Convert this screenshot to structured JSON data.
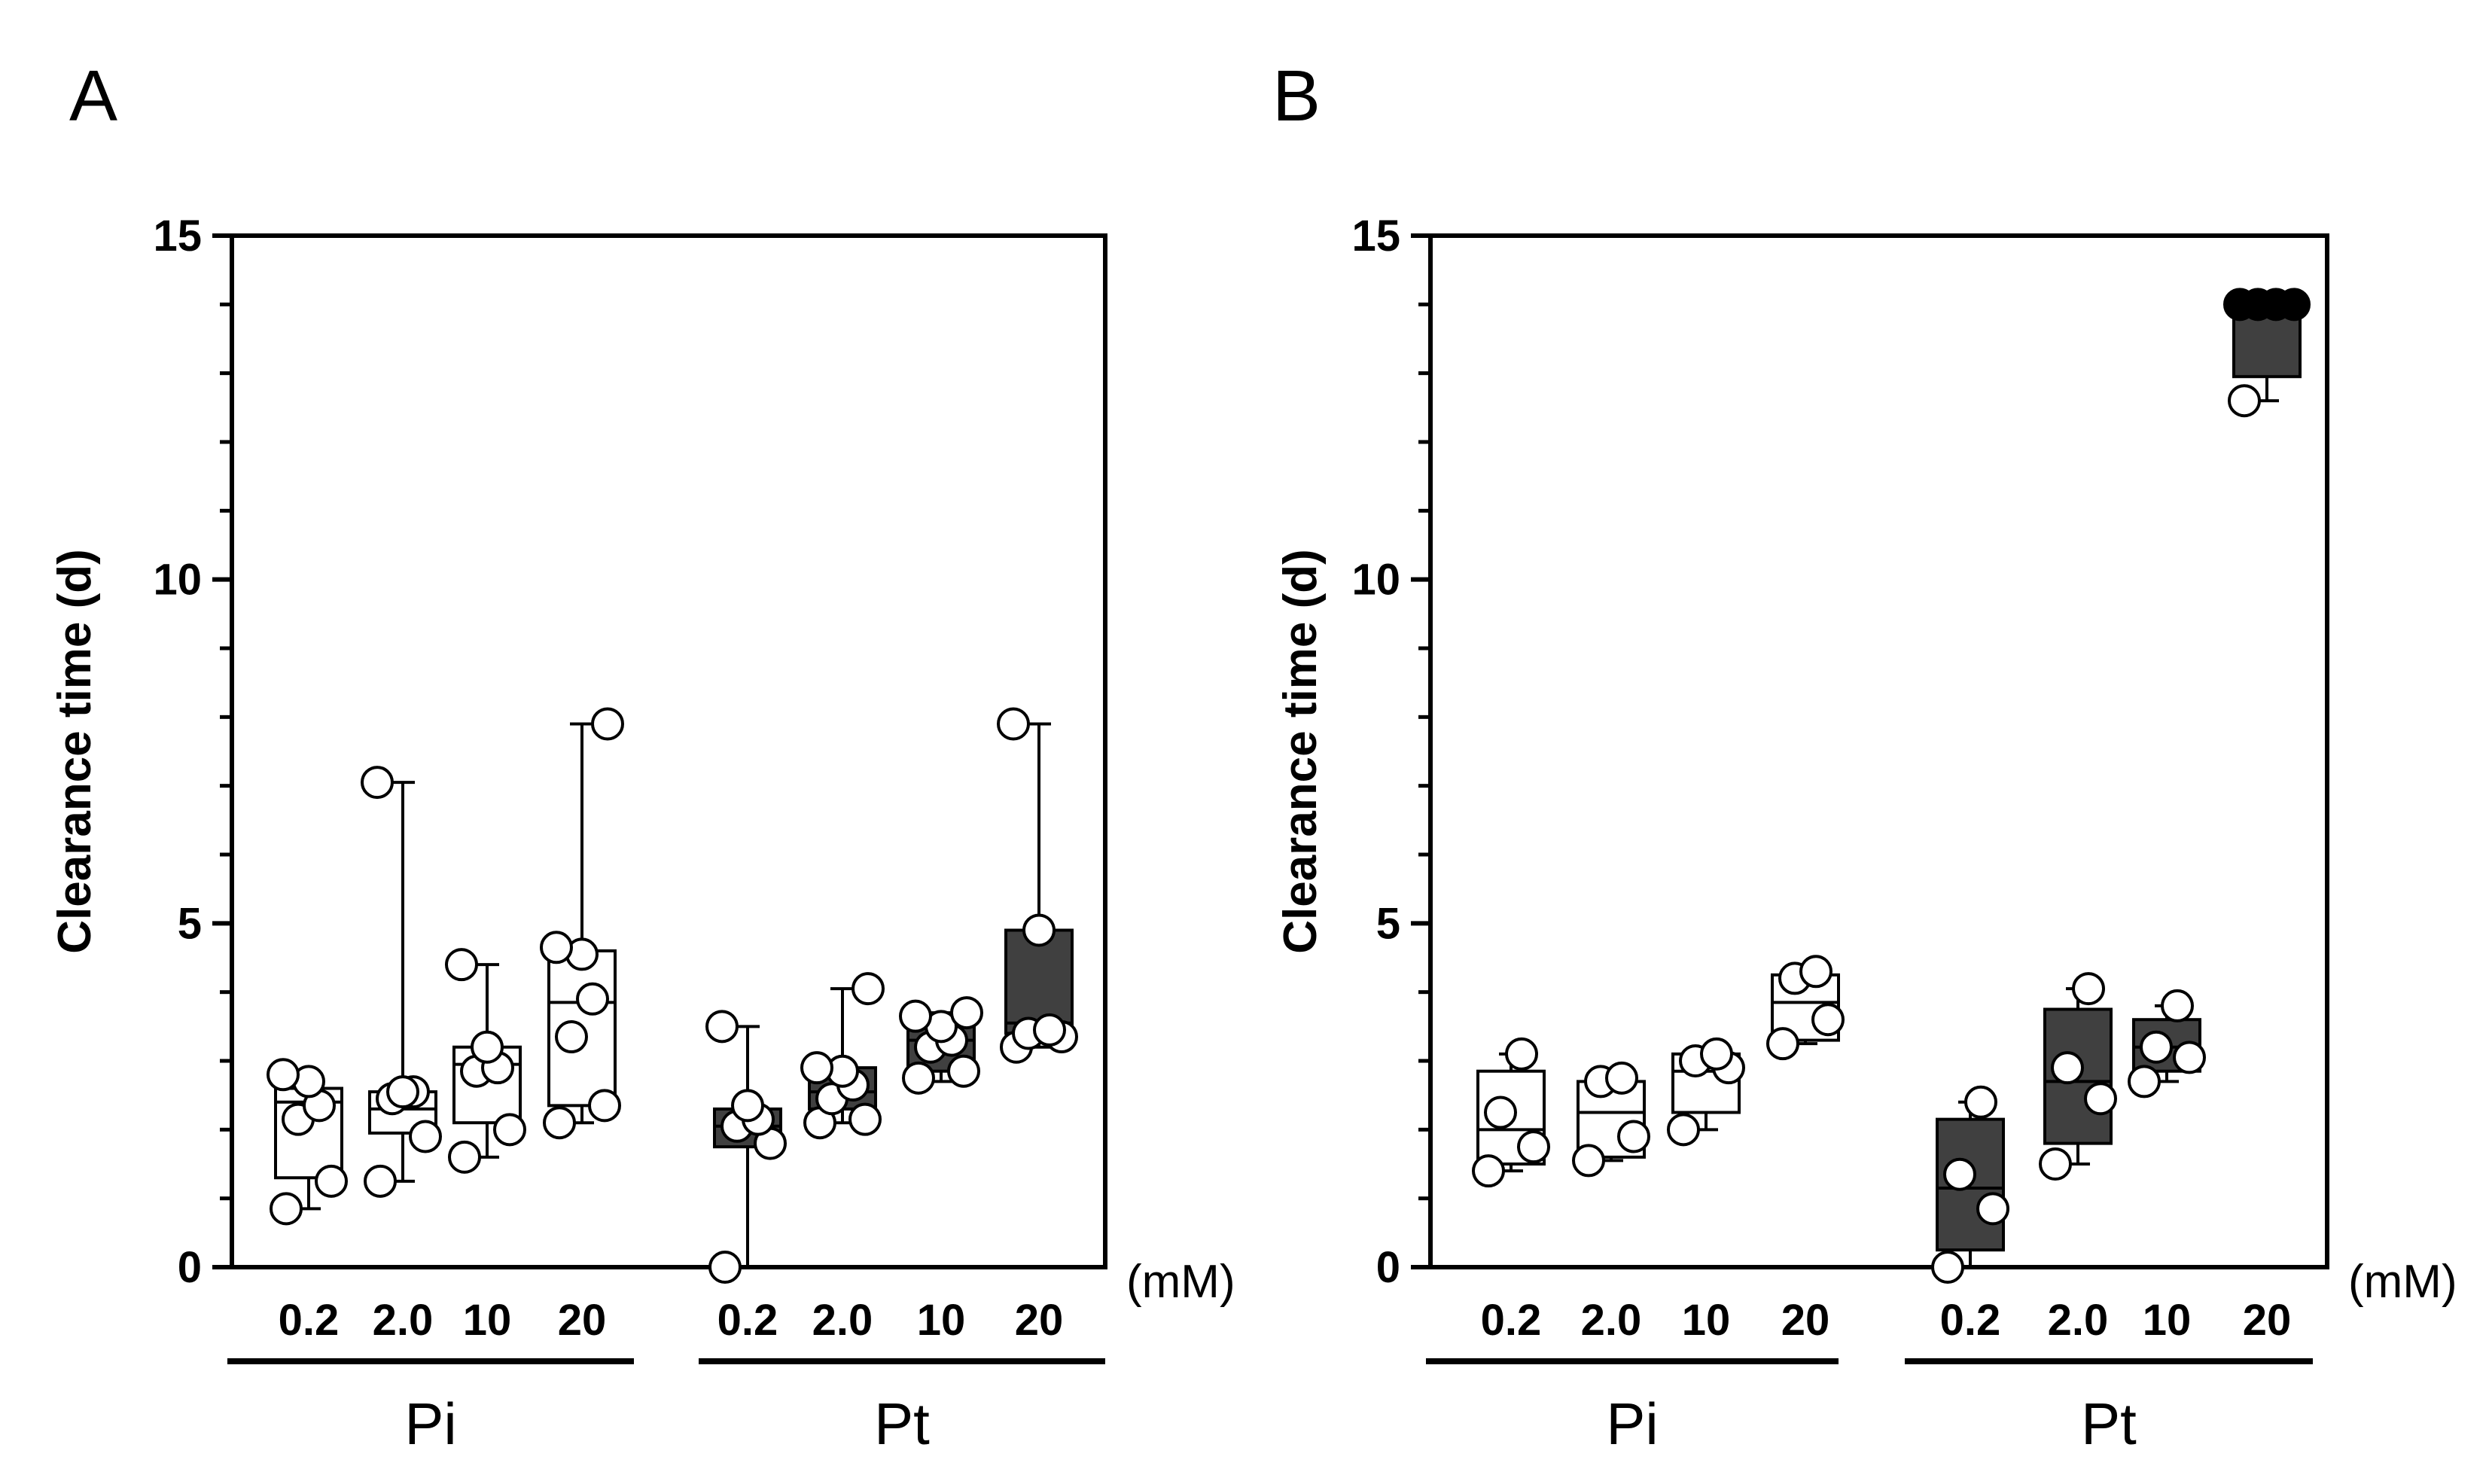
{
  "figure": {
    "ink_color": "#000000",
    "pi_box_color": "#ffffff",
    "pt_box_color": "#404040",
    "filled_point_color": "#000000",
    "open_point_color": "#ffffff"
  },
  "chart_data": [
    {
      "panel": "A",
      "type": "box",
      "ylabel": "Clearance time (d)",
      "ylim": [
        0,
        15
      ],
      "yticks": [
        0,
        5,
        10,
        15
      ],
      "ytick_labels": [
        "0",
        "5",
        "10",
        "15"
      ],
      "unit_label": "(mM)",
      "groups": [
        {
          "label": "Pi",
          "categories": [
            {
              "label": "0.2",
              "fill": "white",
              "whisker_min": 0.85,
              "q1": 1.3,
              "median": 2.4,
              "q3": 2.6,
              "whisker_max": 2.8,
              "points": [
                0.85,
                1.25,
                2.15,
                2.35,
                2.7,
                2.8
              ]
            },
            {
              "label": "2.0",
              "fill": "white",
              "whisker_min": 1.25,
              "q1": 1.95,
              "median": 2.3,
              "q3": 2.55,
              "whisker_max": 7.05,
              "points": [
                1.25,
                1.9,
                2.45,
                2.55,
                2.55,
                7.05
              ]
            },
            {
              "label": "10",
              "fill": "white",
              "whisker_min": 1.6,
              "q1": 2.1,
              "median": 2.95,
              "q3": 3.2,
              "whisker_max": 4.4,
              "points": [
                1.6,
                2.0,
                2.85,
                2.9,
                3.2,
                4.4
              ]
            },
            {
              "label": "20",
              "fill": "white",
              "whisker_min": 2.1,
              "q1": 2.35,
              "median": 3.85,
              "q3": 4.6,
              "whisker_max": 7.9,
              "points": [
                2.1,
                2.35,
                3.35,
                3.9,
                4.55,
                4.65,
                7.9
              ]
            }
          ]
        },
        {
          "label": "Pt",
          "categories": [
            {
              "label": "0.2",
              "fill": "dark",
              "whisker_min": 0.0,
              "q1": 1.75,
              "median": 2.05,
              "q3": 2.3,
              "whisker_max": 3.5,
              "points": [
                0.0,
                1.8,
                2.05,
                2.15,
                2.35,
                3.5
              ]
            },
            {
              "label": "2.0",
              "fill": "dark",
              "whisker_min": 2.1,
              "q1": 2.3,
              "median": 2.55,
              "q3": 2.9,
              "whisker_max": 4.05,
              "points": [
                2.1,
                2.15,
                2.45,
                2.65,
                2.85,
                2.9,
                4.05
              ]
            },
            {
              "label": "10",
              "fill": "dark",
              "whisker_min": 2.7,
              "q1": 2.85,
              "median": 3.3,
              "q3": 3.65,
              "whisker_max": 3.7,
              "points": [
                2.75,
                2.85,
                3.2,
                3.3,
                3.5,
                3.65,
                3.7
              ]
            },
            {
              "label": "20",
              "fill": "dark",
              "whisker_min": 3.2,
              "q1": 3.4,
              "median": 3.55,
              "q3": 4.9,
              "whisker_max": 7.9,
              "points": [
                3.2,
                3.35,
                3.4,
                3.45,
                4.9,
                7.9
              ]
            }
          ]
        }
      ]
    },
    {
      "panel": "B",
      "type": "box",
      "ylabel": "Clearance time (d)",
      "ylim": [
        0,
        15
      ],
      "yticks": [
        0,
        5,
        10,
        15
      ],
      "ytick_labels": [
        "0",
        "5",
        "10",
        "15"
      ],
      "unit_label": "(mM)",
      "groups": [
        {
          "label": "Pi",
          "categories": [
            {
              "label": "0.2",
              "fill": "white",
              "whisker_min": 1.4,
              "q1": 1.5,
              "median": 2.0,
              "q3": 2.85,
              "whisker_max": 3.1,
              "points": [
                1.4,
                1.75,
                2.25,
                3.1
              ]
            },
            {
              "label": "2.0",
              "fill": "white",
              "whisker_min": 1.55,
              "q1": 1.6,
              "median": 2.25,
              "q3": 2.7,
              "whisker_max": 2.75,
              "points": [
                1.55,
                1.9,
                2.7,
                2.75
              ]
            },
            {
              "label": "10",
              "fill": "white",
              "whisker_min": 2.0,
              "q1": 2.25,
              "median": 2.85,
              "q3": 3.1,
              "whisker_max": 3.1,
              "points": [
                2.0,
                2.9,
                3.0,
                3.1
              ]
            },
            {
              "label": "20",
              "fill": "white",
              "whisker_min": 3.25,
              "q1": 3.3,
              "median": 3.85,
              "q3": 4.25,
              "whisker_max": 4.3,
              "points": [
                3.25,
                3.6,
                4.2,
                4.3
              ]
            }
          ]
        },
        {
          "label": "Pt",
          "categories": [
            {
              "label": "0.2",
              "fill": "dark",
              "whisker_min": 0.0,
              "q1": 0.25,
              "median": 1.15,
              "q3": 2.15,
              "whisker_max": 2.4,
              "points": [
                0.0,
                0.85,
                1.35,
                2.4
              ]
            },
            {
              "label": "2.0",
              "fill": "dark",
              "whisker_min": 1.5,
              "q1": 1.8,
              "median": 2.7,
              "q3": 3.75,
              "whisker_max": 4.05,
              "points": [
                1.5,
                2.45,
                2.9,
                4.05
              ]
            },
            {
              "label": "10",
              "fill": "dark",
              "whisker_min": 2.7,
              "q1": 2.85,
              "median": 3.2,
              "q3": 3.6,
              "whisker_max": 3.8,
              "points": [
                2.7,
                3.05,
                3.2,
                3.8
              ]
            },
            {
              "label": "20",
              "fill": "dark",
              "whisker_min": 12.6,
              "q1": 12.95,
              "median": 14.0,
              "q3": 14.0,
              "whisker_max": 14.0,
              "points": [
                12.6,
                14.0,
                14.0,
                14.0,
                14.0
              ],
              "filled_points_at": 14.0
            }
          ]
        }
      ]
    }
  ]
}
